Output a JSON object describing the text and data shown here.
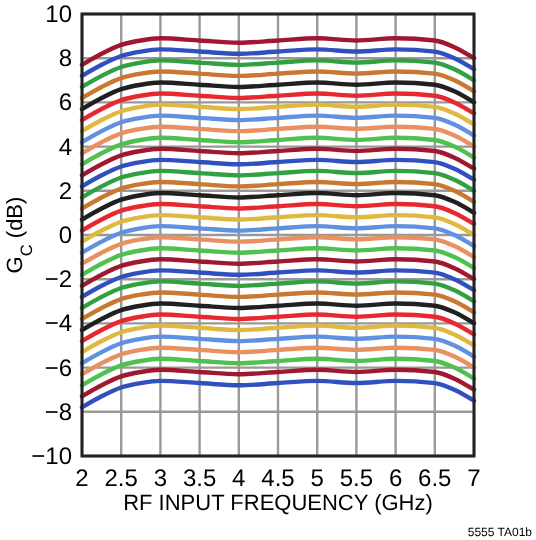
{
  "chart_data": {
    "type": "line",
    "xlabel": "RF INPUT FREQUENCY (GHz)",
    "ylabel": "G$_{C}$ (dB)",
    "annotations": [
      "5555 TA01b"
    ],
    "x": [
      2,
      2.25,
      2.5,
      2.75,
      3,
      3.5,
      4,
      4.5,
      5,
      5.5,
      6,
      6.5,
      6.75,
      7
    ],
    "xlim": [
      2,
      7
    ],
    "xticks": [
      2,
      2.5,
      3,
      3.5,
      4,
      4.5,
      5,
      5.5,
      6,
      6.5,
      7
    ],
    "ylim": [
      -10,
      10
    ],
    "yticks": [
      -10,
      -8,
      -6,
      -4,
      -2,
      0,
      2,
      4,
      6,
      8,
      10
    ],
    "grid": true,
    "marker": "none",
    "line_style": "solid",
    "series": [
      {
        "color": "#a01830",
        "values": [
          7.7,
          8.2,
          8.6,
          8.8,
          8.9,
          8.8,
          8.7,
          8.8,
          8.9,
          8.8,
          8.9,
          8.8,
          8.5,
          8.0
        ]
      },
      {
        "color": "#3050c0",
        "values": [
          7.2,
          7.7,
          8.1,
          8.3,
          8.4,
          8.3,
          8.2,
          8.3,
          8.4,
          8.3,
          8.4,
          8.3,
          8.0,
          7.5
        ]
      },
      {
        "color": "#30a040",
        "values": [
          6.7,
          7.2,
          7.6,
          7.8,
          7.9,
          7.8,
          7.7,
          7.8,
          7.9,
          7.8,
          7.9,
          7.8,
          7.5,
          7.0
        ]
      },
      {
        "color": "#c87830",
        "values": [
          6.2,
          6.7,
          7.1,
          7.3,
          7.4,
          7.3,
          7.2,
          7.3,
          7.4,
          7.3,
          7.4,
          7.3,
          7.0,
          6.5
        ]
      },
      {
        "color": "#202020",
        "values": [
          5.7,
          6.2,
          6.6,
          6.8,
          6.9,
          6.8,
          6.7,
          6.8,
          6.9,
          6.8,
          6.9,
          6.8,
          6.5,
          6.0
        ]
      },
      {
        "color": "#e82830",
        "values": [
          5.2,
          5.7,
          6.1,
          6.3,
          6.4,
          6.3,
          6.2,
          6.3,
          6.4,
          6.3,
          6.4,
          6.3,
          6.0,
          5.5
        ]
      },
      {
        "color": "#e0b840",
        "values": [
          4.7,
          5.2,
          5.6,
          5.8,
          5.9,
          5.8,
          5.7,
          5.8,
          5.9,
          5.8,
          5.9,
          5.8,
          5.5,
          5.0
        ]
      },
      {
        "color": "#6090e0",
        "values": [
          4.2,
          4.7,
          5.1,
          5.3,
          5.4,
          5.3,
          5.2,
          5.3,
          5.4,
          5.3,
          5.4,
          5.3,
          5.0,
          4.5
        ]
      },
      {
        "color": "#e89060",
        "values": [
          3.7,
          4.2,
          4.6,
          4.8,
          4.9,
          4.8,
          4.7,
          4.8,
          4.9,
          4.8,
          4.9,
          4.8,
          4.5,
          4.0
        ]
      },
      {
        "color": "#50c050",
        "values": [
          3.2,
          3.7,
          4.1,
          4.3,
          4.4,
          4.3,
          4.2,
          4.3,
          4.4,
          4.3,
          4.4,
          4.3,
          4.0,
          3.5
        ]
      },
      {
        "color": "#a01830",
        "values": [
          2.7,
          3.2,
          3.6,
          3.8,
          3.9,
          3.8,
          3.7,
          3.8,
          3.9,
          3.8,
          3.9,
          3.8,
          3.5,
          3.0
        ]
      },
      {
        "color": "#3050c0",
        "values": [
          2.2,
          2.7,
          3.1,
          3.3,
          3.4,
          3.3,
          3.2,
          3.3,
          3.4,
          3.3,
          3.4,
          3.3,
          3.0,
          2.5
        ]
      },
      {
        "color": "#30a040",
        "values": [
          1.7,
          2.2,
          2.6,
          2.8,
          2.9,
          2.8,
          2.7,
          2.8,
          2.9,
          2.8,
          2.9,
          2.8,
          2.5,
          2.0
        ]
      },
      {
        "color": "#c87830",
        "values": [
          1.2,
          1.7,
          2.1,
          2.3,
          2.4,
          2.3,
          2.2,
          2.3,
          2.4,
          2.3,
          2.4,
          2.3,
          2.0,
          1.5
        ]
      },
      {
        "color": "#202020",
        "values": [
          0.7,
          1.2,
          1.6,
          1.8,
          1.9,
          1.8,
          1.7,
          1.8,
          1.9,
          1.8,
          1.9,
          1.8,
          1.5,
          1.0
        ]
      },
      {
        "color": "#e82830",
        "values": [
          0.2,
          0.7,
          1.1,
          1.3,
          1.4,
          1.3,
          1.2,
          1.3,
          1.4,
          1.3,
          1.4,
          1.3,
          1.0,
          0.5
        ]
      },
      {
        "color": "#e0b840",
        "values": [
          -0.3,
          0.2,
          0.6,
          0.8,
          0.9,
          0.8,
          0.7,
          0.8,
          0.9,
          0.8,
          0.9,
          0.8,
          0.5,
          0.0
        ]
      },
      {
        "color": "#6090e0",
        "values": [
          -0.8,
          -0.3,
          0.1,
          0.3,
          0.4,
          0.3,
          0.2,
          0.3,
          0.4,
          0.3,
          0.4,
          0.3,
          0.0,
          -0.5
        ]
      },
      {
        "color": "#e89060",
        "values": [
          -1.3,
          -0.8,
          -0.4,
          -0.2,
          -0.1,
          -0.2,
          -0.3,
          -0.2,
          -0.1,
          -0.2,
          -0.1,
          -0.2,
          -0.5,
          -1.0
        ]
      },
      {
        "color": "#50c050",
        "values": [
          -1.8,
          -1.3,
          -0.9,
          -0.7,
          -0.6,
          -0.7,
          -0.8,
          -0.7,
          -0.6,
          -0.7,
          -0.6,
          -0.7,
          -1.0,
          -1.5
        ]
      },
      {
        "color": "#a01830",
        "values": [
          -2.3,
          -1.8,
          -1.4,
          -1.2,
          -1.1,
          -1.2,
          -1.3,
          -1.2,
          -1.1,
          -1.2,
          -1.1,
          -1.2,
          -1.5,
          -2.0
        ]
      },
      {
        "color": "#3050c0",
        "values": [
          -2.8,
          -2.3,
          -1.9,
          -1.7,
          -1.6,
          -1.7,
          -1.8,
          -1.7,
          -1.6,
          -1.7,
          -1.6,
          -1.7,
          -2.0,
          -2.5
        ]
      },
      {
        "color": "#30a040",
        "values": [
          -3.3,
          -2.8,
          -2.4,
          -2.2,
          -2.1,
          -2.2,
          -2.3,
          -2.2,
          -2.1,
          -2.2,
          -2.1,
          -2.2,
          -2.5,
          -3.0
        ]
      },
      {
        "color": "#c87830",
        "values": [
          -3.8,
          -3.3,
          -2.9,
          -2.7,
          -2.6,
          -2.7,
          -2.8,
          -2.7,
          -2.6,
          -2.7,
          -2.6,
          -2.7,
          -3.0,
          -3.5
        ]
      },
      {
        "color": "#202020",
        "values": [
          -4.3,
          -3.8,
          -3.4,
          -3.2,
          -3.1,
          -3.2,
          -3.3,
          -3.2,
          -3.1,
          -3.2,
          -3.1,
          -3.2,
          -3.5,
          -4.0
        ]
      },
      {
        "color": "#e82830",
        "values": [
          -4.8,
          -4.3,
          -3.9,
          -3.7,
          -3.6,
          -3.7,
          -3.8,
          -3.7,
          -3.6,
          -3.7,
          -3.6,
          -3.7,
          -4.0,
          -4.5
        ]
      },
      {
        "color": "#e0b840",
        "values": [
          -5.3,
          -4.8,
          -4.4,
          -4.2,
          -4.1,
          -4.2,
          -4.3,
          -4.2,
          -4.1,
          -4.2,
          -4.1,
          -4.2,
          -4.5,
          -5.0
        ]
      },
      {
        "color": "#6090e0",
        "values": [
          -5.8,
          -5.3,
          -4.9,
          -4.7,
          -4.6,
          -4.7,
          -4.8,
          -4.7,
          -4.6,
          -4.7,
          -4.6,
          -4.7,
          -5.0,
          -5.5
        ]
      },
      {
        "color": "#e89060",
        "values": [
          -6.3,
          -5.8,
          -5.4,
          -5.2,
          -5.1,
          -5.2,
          -5.3,
          -5.2,
          -5.1,
          -5.2,
          -5.1,
          -5.2,
          -5.5,
          -6.0
        ]
      },
      {
        "color": "#50c050",
        "values": [
          -6.8,
          -6.3,
          -5.9,
          -5.7,
          -5.6,
          -5.7,
          -5.8,
          -5.7,
          -5.6,
          -5.7,
          -5.6,
          -5.7,
          -6.0,
          -6.5
        ]
      },
      {
        "color": "#a01830",
        "values": [
          -7.3,
          -6.8,
          -6.4,
          -6.2,
          -6.1,
          -6.2,
          -6.3,
          -6.2,
          -6.1,
          -6.2,
          -6.1,
          -6.2,
          -6.5,
          -7.0
        ]
      },
      {
        "color": "#3050c0",
        "values": [
          -7.8,
          -7.3,
          -6.9,
          -6.7,
          -6.6,
          -6.7,
          -6.8,
          -6.7,
          -6.6,
          -6.7,
          -6.6,
          -6.7,
          -7.0,
          -7.5
        ]
      }
    ]
  }
}
